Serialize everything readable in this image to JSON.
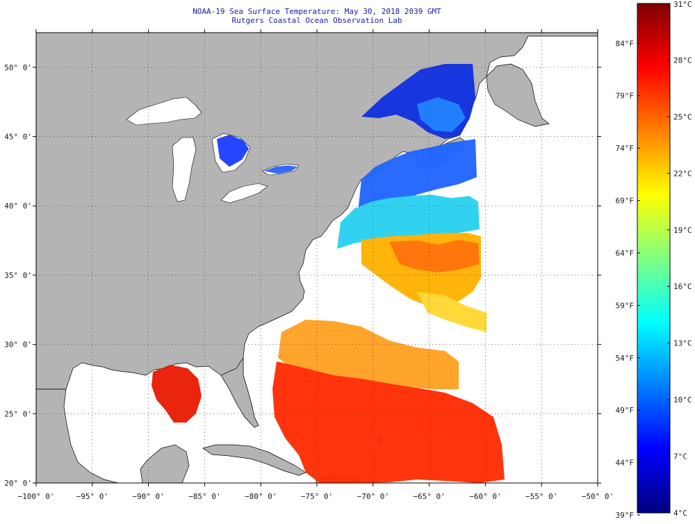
{
  "title": {
    "line1": "NOAA-19 Sea Surface Temperature:  May 30, 2018 2039 GMT",
    "line2": "Rutgers Coastal Ocean Observation Lab"
  },
  "map": {
    "lon_range": [
      -100,
      -50
    ],
    "lat_range": [
      20,
      52.5
    ],
    "lon_ticks": [
      -100,
      -95,
      -90,
      -85,
      -80,
      -75,
      -70,
      -65,
      -60,
      -55,
      -50
    ],
    "lon_tick_labels": [
      "−100° 0'",
      "−95° 0'",
      "−90° 0'",
      "−85° 0'",
      "−80° 0'",
      "−75° 0'",
      "−70° 0'",
      "−65° 0'",
      "−60° 0'",
      "−55° 0'",
      "−50° 0'"
    ],
    "lat_ticks": [
      20,
      25,
      30,
      35,
      40,
      45,
      50
    ],
    "lat_tick_labels": [
      "20° 0'",
      "25° 0'",
      "30° 0'",
      "35° 0'",
      "40° 0'",
      "45° 0'",
      "50° 0'"
    ],
    "grid": "dotted",
    "colors": {
      "land": "#b4b4b4",
      "ocean_no_data": "#ffffff",
      "frame": "#000000"
    }
  },
  "colorbar": {
    "celsius_labels": [
      "31°C",
      "28°C",
      "25°C",
      "22°C",
      "19°C",
      "16°C",
      "13°C",
      "10°C",
      "7°C",
      "4°C"
    ],
    "celsius_values": [
      31,
      28,
      25,
      22,
      19,
      16,
      13,
      10,
      7,
      4
    ],
    "fahrenheit_labels": [
      "84°F",
      "79°F",
      "74°F",
      "69°F",
      "64°F",
      "59°F",
      "54°F",
      "49°F",
      "44°F",
      "39°F"
    ],
    "fahrenheit_values": [
      84,
      79,
      74,
      69,
      64,
      59,
      54,
      49,
      44,
      39
    ],
    "range_c": [
      4,
      31
    ],
    "colors": [
      "#00007f",
      "#0000ff",
      "#0080ff",
      "#00ffff",
      "#80ff80",
      "#ffff00",
      "#ff8000",
      "#ff0000",
      "#7f0000"
    ]
  }
}
